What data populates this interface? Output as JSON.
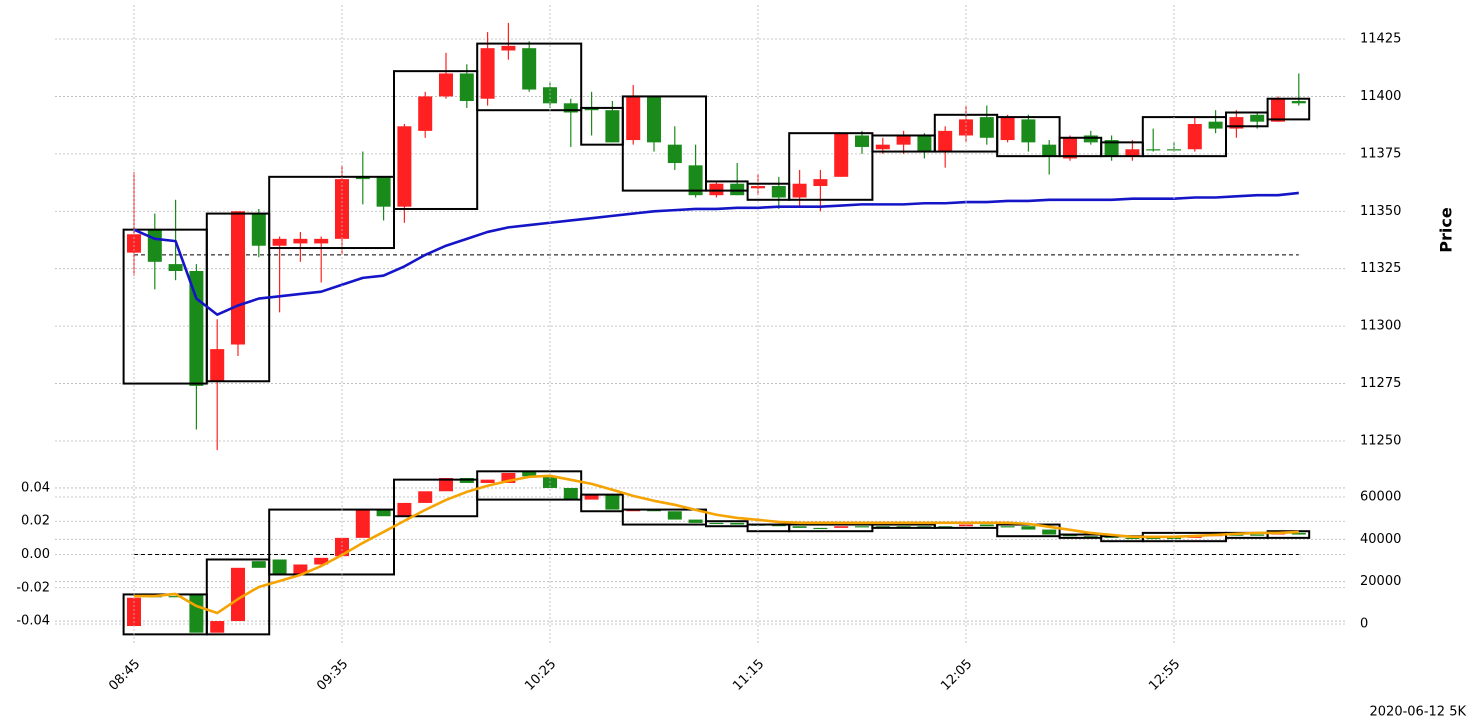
{
  "chart_data": [
    {
      "type": "candlestick",
      "y_label": "Price",
      "ytick_side": "right",
      "open": [
        11332,
        11342,
        11327,
        11324,
        11276,
        11292,
        11349,
        11335,
        11336,
        11336,
        11338,
        11365,
        11365,
        11352,
        11385,
        11400,
        11410,
        11399,
        11420,
        11421,
        11404,
        11397,
        11395,
        11394,
        11381,
        11400,
        11379,
        11370,
        11357,
        11362,
        11360,
        11361,
        11356,
        11361,
        11365,
        11383,
        11377,
        11379,
        11383,
        11376,
        11383,
        11391,
        11381,
        11390,
        11379,
        11373,
        11383,
        11381,
        11374,
        11377,
        11377,
        11377,
        11389,
        11386,
        11392,
        11389,
        11398
      ],
      "high": [
        11367,
        11349,
        11355,
        11327,
        11303,
        11350,
        11351,
        11339,
        11341,
        11339,
        11370,
        11376,
        11365,
        11388,
        11402,
        11419,
        11414,
        11428,
        11432,
        11424,
        11406,
        11399,
        11402,
        11398,
        11405,
        11400,
        11387,
        11379,
        11363,
        11371,
        11366,
        11365,
        11368,
        11368,
        11384,
        11385,
        11382,
        11385,
        11384,
        11387,
        11396,
        11396,
        11392,
        11392,
        11381,
        11383,
        11385,
        11383,
        11381,
        11386,
        11380,
        11391,
        11394,
        11394,
        11393,
        11400,
        11410
      ],
      "low": [
        11322,
        11316,
        11320,
        11255,
        11246,
        11287,
        11330,
        11306,
        11328,
        11319,
        11331,
        11353,
        11346,
        11345,
        11382,
        11399,
        11395,
        11396,
        11416,
        11402,
        11395,
        11378,
        11383,
        11380,
        11379,
        11376,
        11368,
        11356,
        11356,
        11357,
        11357,
        11351,
        11352,
        11350,
        11365,
        11375,
        11375,
        11375,
        11373,
        11369,
        11380,
        11379,
        11380,
        11376,
        11366,
        11372,
        11379,
        11372,
        11372,
        11376,
        11376,
        11376,
        11384,
        11382,
        11386,
        11389,
        11396
      ],
      "close": [
        11340,
        11328,
        11324,
        11274,
        11290,
        11350,
        11335,
        11338,
        11338,
        11338,
        11364,
        11364,
        11352,
        11387,
        11400,
        11410,
        11398,
        11421,
        11422,
        11403,
        11397,
        11393,
        11394,
        11380,
        11400,
        11380,
        11371,
        11357,
        11362,
        11357,
        11361,
        11356,
        11362,
        11364,
        11384,
        11378,
        11379,
        11383,
        11376,
        11385,
        11390,
        11382,
        11391,
        11380,
        11374,
        11382,
        11380,
        11374,
        11377,
        11377,
        11377,
        11388,
        11386,
        11391,
        11389,
        11399,
        11397
      ],
      "color_up": "#ff2121",
      "color_down": "#1a8a1a",
      "box_color": "#000000",
      "boxes": [
        {
          "start": -0.5,
          "end": 3.5,
          "low": 11275,
          "high": 11342
        },
        {
          "start": 3.5,
          "end": 6.5,
          "low": 11276,
          "high": 11349
        },
        {
          "start": 6.5,
          "end": 12.5,
          "low": 11334,
          "high": 11365
        },
        {
          "start": 12.5,
          "end": 16.5,
          "low": 11351,
          "high": 11411
        },
        {
          "start": 16.5,
          "end": 21.5,
          "low": 11394,
          "high": 11423
        },
        {
          "start": 21.5,
          "end": 23.5,
          "low": 11379,
          "high": 11395
        },
        {
          "start": 23.5,
          "end": 27.5,
          "low": 11359,
          "high": 11400
        },
        {
          "start": 27.5,
          "end": 29.5,
          "low": 11359,
          "high": 11363
        },
        {
          "start": 29.5,
          "end": 31.5,
          "low": 11355,
          "high": 11362
        },
        {
          "start": 31.5,
          "end": 35.5,
          "low": 11355,
          "high": 11384
        },
        {
          "start": 35.5,
          "end": 38.5,
          "low": 11376,
          "high": 11383
        },
        {
          "start": 38.5,
          "end": 41.5,
          "low": 11376,
          "high": 11392
        },
        {
          "start": 41.5,
          "end": 44.5,
          "low": 11374,
          "high": 11391
        },
        {
          "start": 44.5,
          "end": 46.5,
          "low": 11374,
          "high": 11382
        },
        {
          "start": 46.5,
          "end": 48.5,
          "low": 11374,
          "high": 11380
        },
        {
          "start": 48.5,
          "end": 52.5,
          "low": 11374,
          "high": 11391
        },
        {
          "start": 52.5,
          "end": 54.5,
          "low": 11387,
          "high": 11393
        },
        {
          "start": 54.5,
          "end": 56.5,
          "low": 11390,
          "high": 11399
        }
      ],
      "lines": [
        {
          "color": "#1515c8",
          "values": [
            11342,
            11338,
            11337,
            11312,
            11305,
            11309,
            11312,
            11313,
            11314,
            11315,
            11318,
            11321,
            11322,
            11326,
            11331,
            11335,
            11338,
            11341,
            11343,
            11344,
            11345,
            11346,
            11347,
            11348,
            11349,
            11350,
            11350.5,
            11351,
            11351,
            11351.5,
            11351.5,
            11352,
            11352,
            11352,
            11352.5,
            11353,
            11353,
            11353,
            11353.5,
            11353.5,
            11354,
            11354,
            11354.5,
            11354.5,
            11355,
            11355,
            11355,
            11355,
            11355.5,
            11355.5,
            11355.5,
            11356,
            11356,
            11356.5,
            11357,
            11357,
            11358
          ]
        }
      ],
      "hline": 11331,
      "ylim": [
        11243.9,
        11439.8
      ],
      "yticks": [
        11250,
        11275,
        11300,
        11325,
        11350,
        11375,
        11400,
        11425
      ],
      "grid": true
    },
    {
      "type": "candlestick",
      "categories": [
        "08:45",
        null,
        null,
        null,
        null,
        null,
        null,
        null,
        null,
        null,
        "09:35",
        null,
        null,
        null,
        null,
        null,
        null,
        null,
        null,
        null,
        "10:25",
        null,
        null,
        null,
        null,
        null,
        null,
        null,
        null,
        null,
        "11:15",
        null,
        null,
        null,
        null,
        null,
        null,
        null,
        null,
        null,
        "12:05",
        null,
        null,
        null,
        null,
        null,
        null,
        null,
        null,
        null,
        "12:55",
        null,
        null,
        null,
        null,
        null,
        null
      ],
      "open": [
        -0.043,
        -0.025,
        -0.025,
        -0.024,
        -0.047,
        -0.04,
        -0.004,
        -0.003,
        -0.012,
        -0.006,
        -0.001,
        0.01,
        0.027,
        0.023,
        0.031,
        0.038,
        0.046,
        0.043,
        0.043,
        0.05,
        0.047,
        0.04,
        0.033,
        0.036,
        0.026,
        0.027,
        0.026,
        0.021,
        0.019,
        0.019,
        0.018,
        0.018,
        0.017,
        0.016,
        0.016,
        0.017,
        0.017,
        0.017,
        0.017,
        0.017,
        0.017,
        0.018,
        0.017,
        0.017,
        0.015,
        0.012,
        0.011,
        0.011,
        0.01,
        0.01,
        0.01,
        0.01,
        0.011,
        0.012,
        0.012,
        0.012,
        0.013
      ],
      "close": [
        -0.026,
        -0.025,
        -0.025,
        -0.047,
        -0.04,
        -0.008,
        -0.008,
        -0.012,
        -0.006,
        -0.002,
        0.01,
        0.027,
        0.023,
        0.031,
        0.038,
        0.046,
        0.043,
        0.045,
        0.049,
        0.047,
        0.04,
        0.033,
        0.036,
        0.027,
        0.027,
        0.026,
        0.021,
        0.019,
        0.019,
        0.018,
        0.018,
        0.017,
        0.016,
        0.016,
        0.017,
        0.017,
        0.017,
        0.017,
        0.017,
        0.017,
        0.018,
        0.017,
        0.017,
        0.015,
        0.012,
        0.011,
        0.011,
        0.01,
        0.01,
        0.01,
        0.01,
        0.011,
        0.012,
        0.012,
        0.012,
        0.013,
        0.012
      ],
      "color_up": "#ff2121",
      "color_down": "#1a8a1a",
      "box_color": "#000000",
      "boxes": [
        {
          "start": -0.5,
          "end": 3.5,
          "low": -0.048,
          "high": -0.024
        },
        {
          "start": 3.5,
          "end": 6.5,
          "low": -0.048,
          "high": -0.003
        },
        {
          "start": 6.5,
          "end": 12.5,
          "low": -0.012,
          "high": 0.027
        },
        {
          "start": 12.5,
          "end": 16.5,
          "low": 0.023,
          "high": 0.045
        },
        {
          "start": 16.5,
          "end": 21.5,
          "low": 0.033,
          "high": 0.05
        },
        {
          "start": 21.5,
          "end": 23.5,
          "low": 0.026,
          "high": 0.036
        },
        {
          "start": 23.5,
          "end": 27.5,
          "low": 0.018,
          "high": 0.027
        },
        {
          "start": 27.5,
          "end": 29.5,
          "low": 0.017,
          "high": 0.02
        },
        {
          "start": 29.5,
          "end": 31.5,
          "low": 0.014,
          "high": 0.018
        },
        {
          "start": 31.5,
          "end": 35.5,
          "low": 0.014,
          "high": 0.018
        },
        {
          "start": 35.5,
          "end": 38.5,
          "low": 0.016,
          "high": 0.018
        },
        {
          "start": 38.5,
          "end": 41.5,
          "low": 0.016,
          "high": 0.019
        },
        {
          "start": 41.5,
          "end": 44.5,
          "low": 0.011,
          "high": 0.018
        },
        {
          "start": 44.5,
          "end": 46.5,
          "low": 0.01,
          "high": 0.012
        },
        {
          "start": 46.5,
          "end": 48.5,
          "low": 0.008,
          "high": 0.011
        },
        {
          "start": 48.5,
          "end": 52.5,
          "low": 0.008,
          "high": 0.013
        },
        {
          "start": 52.5,
          "end": 54.5,
          "low": 0.01,
          "high": 0.013
        },
        {
          "start": 54.5,
          "end": 56.5,
          "low": 0.01,
          "high": 0.014
        }
      ],
      "lines": [
        {
          "color": "#f5a300",
          "axis": "y2",
          "values": [
            13200,
            13200,
            14200,
            8500,
            5200,
            11800,
            17500,
            20300,
            23200,
            27400,
            32600,
            38300,
            43500,
            48700,
            53900,
            58600,
            62400,
            65300,
            67600,
            69500,
            70000,
            68100,
            66200,
            63400,
            60500,
            58200,
            56300,
            53900,
            51600,
            50100,
            49200,
            48200,
            47800,
            47800,
            47800,
            47800,
            47800,
            47800,
            47800,
            47800,
            47800,
            47800,
            47800,
            47300,
            45900,
            44500,
            43000,
            42100,
            41200,
            41200,
            41200,
            41600,
            42100,
            42600,
            43000,
            43000,
            43500
          ]
        }
      ],
      "hline": 0,
      "ylim": [
        -0.0544,
        0.0538
      ],
      "yticks": [
        -0.04,
        -0.02,
        {
          "value": 0,
          "label": "0.00"
        },
        0.02,
        0.04
      ],
      "y2lim": [
        -9900,
        75100
      ],
      "y2ticks": [
        0,
        20000,
        40000,
        60000
      ],
      "grid": true
    }
  ],
  "footnote": "2020-06-12 5K"
}
